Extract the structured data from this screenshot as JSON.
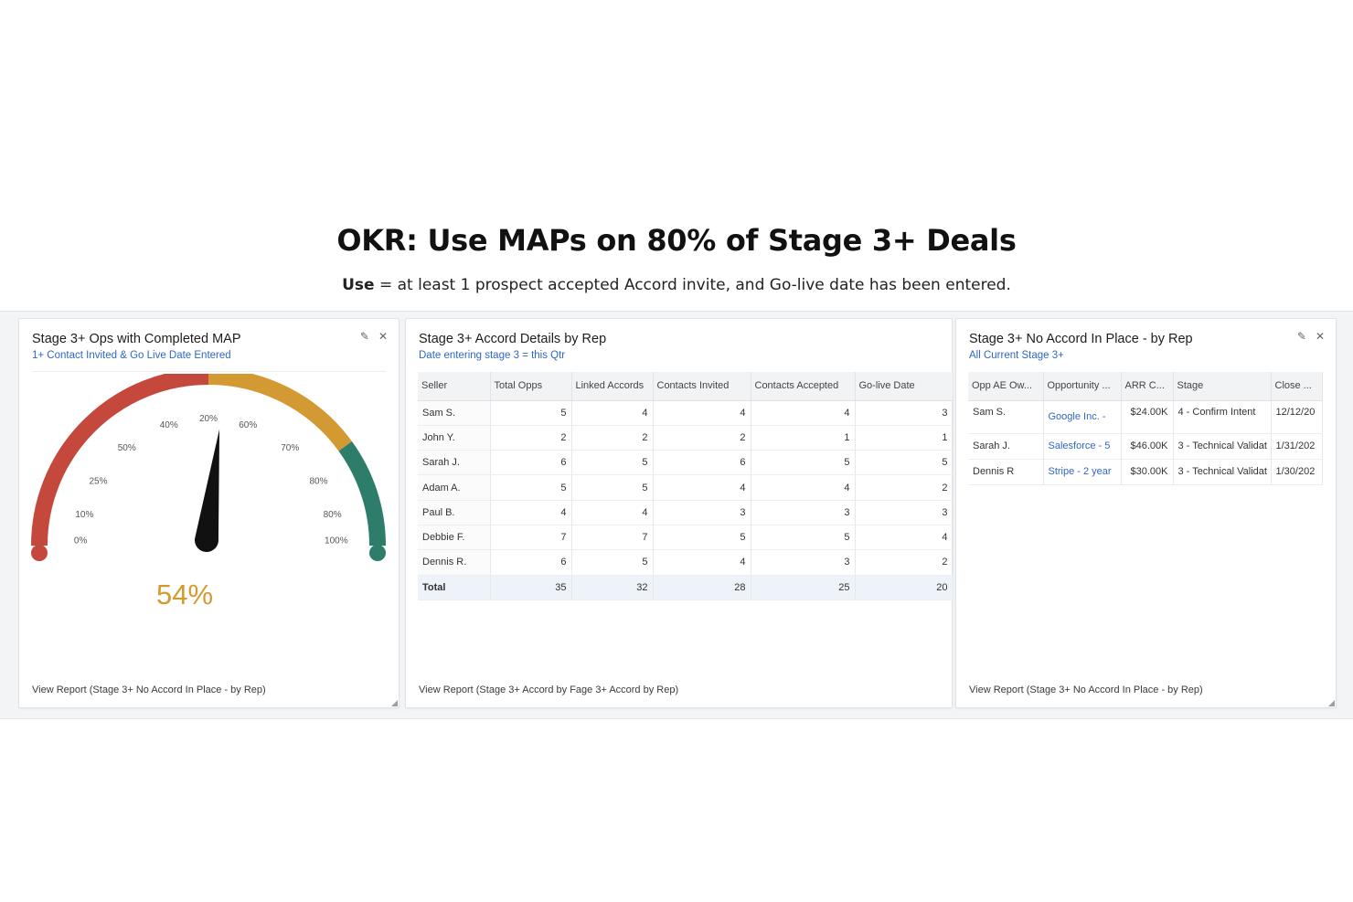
{
  "headline": "OKR: Use MAPs on 80% of Stage 3+ Deals",
  "subline": {
    "bold": "Use",
    "rest": " = at least 1 prospect accepted Accord invite, and Go-live date has been entered."
  },
  "gauge_card": {
    "title": "Stage 3+ Ops with Completed MAP",
    "subtitle": "1+ Contact Invited & Go Live Date Entered",
    "value_text": "54%",
    "value": 54,
    "footer": "View Report (Stage 3+ No Accord In Place - by Rep)",
    "tick_labels": [
      "0%",
      "10%",
      "25%",
      "50%",
      "40%",
      "20%",
      "60%",
      "70%",
      "80%",
      "80%",
      "100%"
    ],
    "colors": {
      "red": "#c5483d",
      "amber": "#d39a33",
      "green": "#2e7d6b",
      "needle": "#111111",
      "value": "#d59a2e"
    }
  },
  "accord_card": {
    "title": "Stage 3+ Accord Details by Rep",
    "subtitle": "Date entering stage 3 = this Qtr",
    "footer": "View Report (Stage 3+ Accord by Fage 3+ Accord by Rep)",
    "columns": [
      "Seller",
      "Total Opps",
      "Linked Accords",
      "Contacts Invited",
      "Contacts Accepted",
      "Go-live Date"
    ],
    "rows": [
      [
        "Sam S.",
        "5",
        "4",
        "4",
        "4",
        "3"
      ],
      [
        "John Y.",
        "2",
        "2",
        "2",
        "1",
        "1"
      ],
      [
        "Sarah J.",
        "6",
        "5",
        "6",
        "5",
        "5"
      ],
      [
        "Adam A.",
        "5",
        "5",
        "4",
        "4",
        "2"
      ],
      [
        "Paul B.",
        "4",
        "4",
        "3",
        "3",
        "3"
      ],
      [
        "Debbie F.",
        "7",
        "7",
        "5",
        "5",
        "4"
      ],
      [
        "Dennis R.",
        "6",
        "5",
        "4",
        "3",
        "2"
      ]
    ],
    "total": [
      "Total",
      "35",
      "32",
      "28",
      "25",
      "20"
    ]
  },
  "noaccord_card": {
    "title": "Stage 3+ No Accord In Place - by Rep",
    "subtitle": "All Current Stage 3+",
    "footer": "View Report (Stage 3+ No Accord In Place - by Rep)",
    "columns": [
      "Opp AE Ow...",
      "Opportunity ...",
      "ARR C...",
      "Stage",
      "Close ..."
    ],
    "rows": [
      [
        "Sam S.",
        "Google Inc. -",
        "$24.00K",
        "4 - Confirm Intent",
        "12/12/20"
      ],
      [
        "Sarah J.",
        "Salesforce - 5",
        "$46.00K",
        "3 - Technical Validat",
        "1/31/202"
      ],
      [
        "Dennis R",
        "Stripe - 2 year",
        "$30.00K",
        "3 - Technical Validat",
        "1/30/202"
      ]
    ]
  },
  "icons": {
    "edit": "pencil-icon",
    "close": "close-icon"
  }
}
